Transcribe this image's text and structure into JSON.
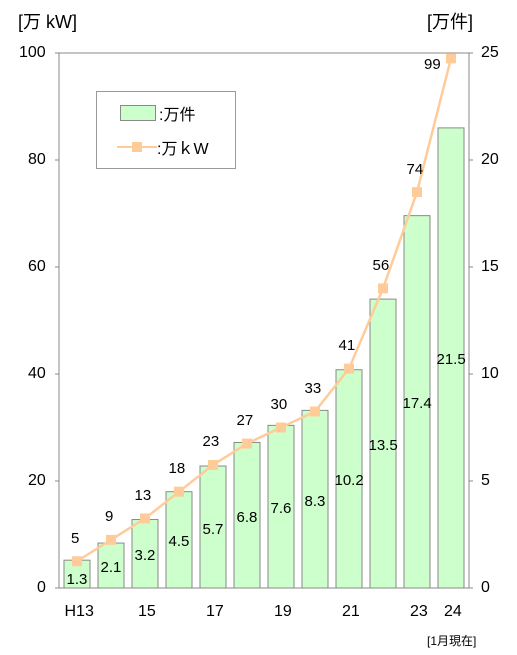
{
  "chart_data": {
    "type": "bar+line",
    "categories": [
      "H13",
      "",
      "15",
      "",
      "17",
      "",
      "19",
      "",
      "21",
      "",
      "23",
      "24"
    ],
    "series": [
      {
        "name": "万件",
        "type": "bar",
        "axis": "right",
        "values": [
          1.3,
          2.1,
          3.2,
          4.5,
          5.7,
          6.8,
          7.6,
          8.3,
          10.2,
          13.5,
          17.4,
          21.5
        ],
        "value_labels": [
          "1.3",
          "2.1",
          "3.2",
          "4.5",
          "5.7",
          "6.8",
          "7.6",
          "8.3",
          "10.2",
          "13.5",
          "17.4",
          "21.5"
        ]
      },
      {
        "name": "万kW",
        "type": "line",
        "axis": "left",
        "values": [
          5,
          9,
          13,
          18,
          23,
          27,
          30,
          33,
          41,
          56,
          74,
          99
        ],
        "value_labels": [
          "5",
          "9",
          "13",
          "18",
          "23",
          "27",
          "30",
          "33",
          "41",
          "56",
          "74",
          "99"
        ]
      }
    ],
    "left_axis": {
      "unit": "[万 kW]",
      "ylim": [
        0,
        100
      ],
      "ticks": [
        "0",
        "20",
        "40",
        "60",
        "80",
        "100"
      ]
    },
    "right_axis": {
      "unit": "[万件]",
      "ylim": [
        0,
        25
      ],
      "ticks": [
        "0",
        "5",
        "10",
        "15",
        "20",
        "25"
      ]
    },
    "note": "[1月現在]",
    "legend": {
      "placement": "top-left",
      "bar_label": ":万件",
      "line_label": ":万ｋW"
    },
    "grid": false,
    "colors": {
      "bar_fill": "#ccffcc",
      "bar_stroke": "#8a8a8a",
      "line": "#ffcc99",
      "marker": "#ffcc99",
      "axis": "#888888"
    }
  }
}
